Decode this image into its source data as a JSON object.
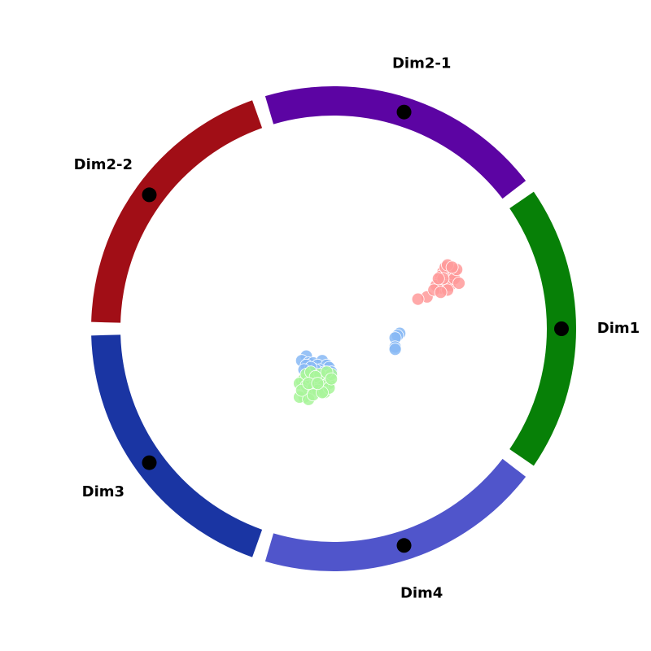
{
  "chart_data": {
    "type": "scatter",
    "title": "",
    "anchors": [
      {
        "name": "Dim1",
        "color": "#078007"
      },
      {
        "name": "Dim2-1",
        "color": "#5c04a3"
      },
      {
        "name": "Dim2-2",
        "color": "#a10e16"
      },
      {
        "name": "Dim3",
        "color": "#1a35a3"
      },
      {
        "name": "Dim4",
        "color": "#5055cb"
      }
    ],
    "series": [
      {
        "color": "#ff9a9a",
        "points": [
          [
            0.49,
            0.24
          ],
          [
            0.5,
            0.23
          ],
          [
            0.48,
            0.25
          ],
          [
            0.51,
            0.25
          ],
          [
            0.5,
            0.26
          ],
          [
            0.52,
            0.24
          ],
          [
            0.47,
            0.23
          ],
          [
            0.49,
            0.27
          ],
          [
            0.51,
            0.22
          ],
          [
            0.53,
            0.25
          ],
          [
            0.48,
            0.21
          ],
          [
            0.5,
            0.2
          ],
          [
            0.46,
            0.2
          ],
          [
            0.47,
            0.18
          ],
          [
            0.52,
            0.21
          ],
          [
            0.49,
            0.19
          ],
          [
            0.45,
            0.19
          ],
          [
            0.51,
            0.19
          ],
          [
            0.53,
            0.22
          ],
          [
            0.54,
            0.26
          ],
          [
            0.5,
            0.28
          ],
          [
            0.52,
            0.27
          ],
          [
            0.48,
            0.22
          ],
          [
            0.46,
            0.22
          ],
          [
            0.41,
            0.14
          ],
          [
            0.37,
            0.13
          ],
          [
            0.44,
            0.17
          ],
          [
            0.5,
            0.17
          ],
          [
            0.47,
            0.16
          ],
          [
            0.55,
            0.2
          ]
        ]
      },
      {
        "color": "#87b8f5",
        "points": [
          [
            0.29,
            -0.02
          ],
          [
            0.28,
            -0.03
          ],
          [
            0.27,
            -0.04
          ],
          [
            0.27,
            -0.08
          ],
          [
            0.27,
            -0.09
          ],
          [
            -0.12,
            -0.12
          ],
          [
            -0.14,
            -0.14
          ],
          [
            -0.11,
            -0.15
          ],
          [
            -0.09,
            -0.15
          ],
          [
            -0.05,
            -0.14
          ],
          [
            -0.12,
            -0.16
          ],
          [
            -0.07,
            -0.16
          ],
          [
            -0.03,
            -0.16
          ],
          [
            -0.02,
            -0.17
          ],
          [
            -0.06,
            -0.18
          ],
          [
            -0.08,
            -0.18
          ],
          [
            -0.1,
            -0.17
          ],
          [
            -0.01,
            -0.19
          ],
          [
            -0.04,
            -0.19
          ],
          [
            -0.13,
            -0.18
          ]
        ]
      },
      {
        "color": "#a8f59a",
        "points": [
          [
            -0.14,
            -0.23
          ],
          [
            -0.13,
            -0.22
          ],
          [
            -0.15,
            -0.24
          ],
          [
            -0.12,
            -0.25
          ],
          [
            -0.1,
            -0.22
          ],
          [
            -0.08,
            -0.23
          ],
          [
            -0.06,
            -0.22
          ],
          [
            -0.04,
            -0.23
          ],
          [
            -0.02,
            -0.24
          ],
          [
            -0.03,
            -0.21
          ],
          [
            -0.05,
            -0.25
          ],
          [
            -0.09,
            -0.26
          ],
          [
            -0.07,
            -0.27
          ],
          [
            -0.04,
            -0.28
          ],
          [
            -0.02,
            -0.26
          ],
          [
            -0.13,
            -0.3
          ],
          [
            -0.15,
            -0.3
          ],
          [
            -0.11,
            -0.31
          ],
          [
            -0.09,
            -0.29
          ],
          [
            -0.12,
            -0.2
          ],
          [
            -0.1,
            -0.19
          ],
          [
            -0.06,
            -0.2
          ],
          [
            -0.01,
            -0.2
          ],
          [
            -0.03,
            -0.19
          ],
          [
            -0.08,
            -0.21
          ],
          [
            -0.14,
            -0.27
          ],
          [
            -0.11,
            -0.24
          ],
          [
            -0.05,
            -0.28
          ],
          [
            -0.01,
            -0.22
          ],
          [
            -0.07,
            -0.24
          ]
        ]
      }
    ]
  }
}
